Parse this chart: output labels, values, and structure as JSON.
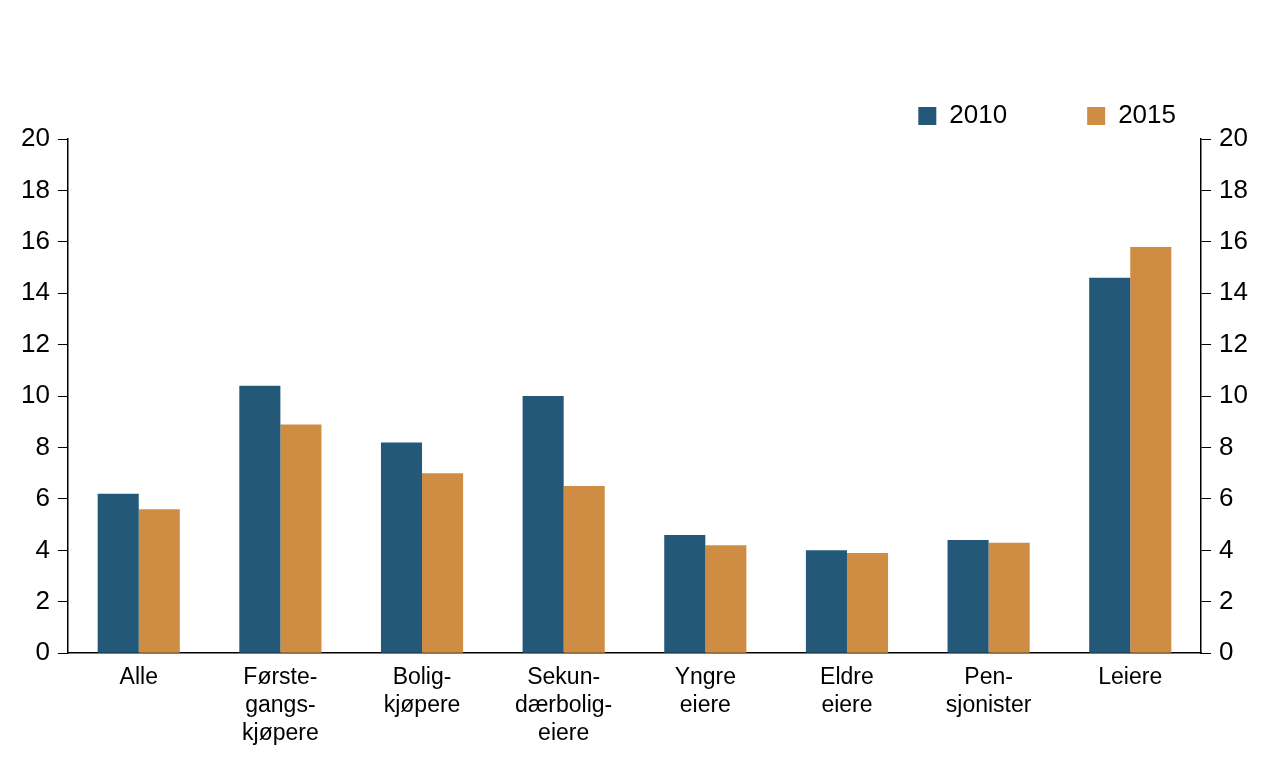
{
  "chart_data": {
    "type": "bar",
    "categories": [
      "Alle",
      "Første-\ngangs-\nkjøpere",
      "Bolig-\nkjøpere",
      "Sekun-\ndærbolig-\neiere",
      "Yngre\neiere",
      "Eldre\neiere",
      "Pen-\nsjonister",
      "Leiere"
    ],
    "series": [
      {
        "name": "2010",
        "color": "#235878",
        "values": [
          6.2,
          10.4,
          8.2,
          10.0,
          4.6,
          4.0,
          4.4,
          14.6
        ]
      },
      {
        "name": "2015",
        "color": "#cf8d44",
        "values": [
          5.6,
          8.9,
          7.0,
          6.5,
          4.2,
          3.9,
          4.3,
          15.8
        ]
      }
    ],
    "ylim": [
      0,
      20
    ],
    "yticks": [
      0,
      2,
      4,
      6,
      8,
      10,
      12,
      14,
      16,
      18,
      20
    ],
    "y2lim": [
      0,
      20
    ],
    "y2ticks": [
      0,
      2,
      4,
      6,
      8,
      10,
      12,
      14,
      16,
      18,
      20
    ],
    "grid": false,
    "legend": "top right"
  }
}
